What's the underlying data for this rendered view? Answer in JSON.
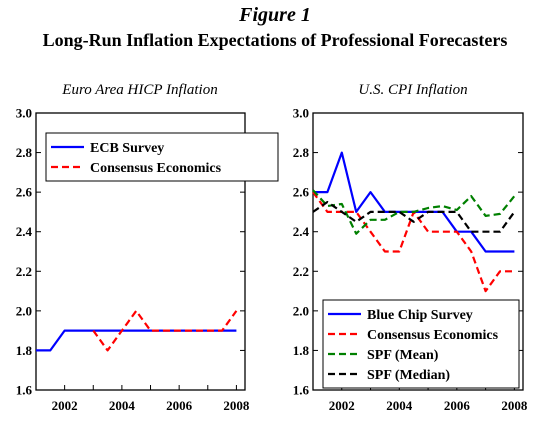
{
  "figure": {
    "number": "Figure 1",
    "title": "Long-Run Inflation Expectations of Professional Forecasters"
  },
  "chart_data": [
    {
      "type": "line",
      "title": "Euro Area HICP Inflation",
      "xlim": [
        2001,
        2008.3
      ],
      "ylim": [
        1.6,
        3.0
      ],
      "xticks": [
        2002,
        2004,
        2006,
        2008
      ],
      "yticks": [
        "1.6",
        "1.8",
        "2.0",
        "2.2",
        "2.4",
        "2.6",
        "2.8",
        "3.0"
      ],
      "legend_position": "top-left",
      "series": [
        {
          "name": "ECB Survey",
          "color": "#0000ff",
          "dash": "solid",
          "x": [
            2001.0,
            2001.5,
            2002.0,
            2003.0,
            2004.0,
            2005.0,
            2006.0,
            2007.0,
            2008.0
          ],
          "y": [
            1.8,
            1.8,
            1.9,
            1.9,
            1.9,
            1.9,
            1.9,
            1.9,
            1.9
          ]
        },
        {
          "name": "Consensus Economics",
          "color": "#ff0000",
          "dash": "dashed",
          "x": [
            2003.0,
            2003.5,
            2004.0,
            2004.5,
            2005.0,
            2005.5,
            2006.0,
            2006.5,
            2007.0,
            2007.5,
            2008.0
          ],
          "y": [
            1.9,
            1.8,
            1.9,
            2.0,
            1.9,
            1.9,
            1.9,
            1.9,
            1.9,
            1.9,
            2.0
          ]
        }
      ]
    },
    {
      "type": "line",
      "title": "U.S. CPI Inflation",
      "xlim": [
        2001,
        2008.3
      ],
      "ylim": [
        1.6,
        3.0
      ],
      "xticks": [
        2002,
        2004,
        2006,
        2008
      ],
      "yticks": [
        "1.6",
        "1.8",
        "2.0",
        "2.2",
        "2.4",
        "2.6",
        "2.8",
        "3.0"
      ],
      "legend_position": "bottom-left",
      "series": [
        {
          "name": "Blue Chip Survey",
          "color": "#0000ff",
          "dash": "solid",
          "x": [
            2001.0,
            2001.5,
            2002.0,
            2002.5,
            2003.0,
            2003.5,
            2004.0,
            2004.5,
            2005.0,
            2005.5,
            2006.0,
            2006.5,
            2007.0,
            2007.5,
            2008.0
          ],
          "y": [
            2.6,
            2.6,
            2.8,
            2.5,
            2.6,
            2.5,
            2.5,
            2.5,
            2.5,
            2.5,
            2.4,
            2.4,
            2.3,
            2.3,
            2.3
          ]
        },
        {
          "name": "Consensus Economics",
          "color": "#ff0000",
          "dash": "dashed",
          "x": [
            2001.0,
            2001.5,
            2002.0,
            2002.5,
            2003.0,
            2003.5,
            2004.0,
            2004.5,
            2005.0,
            2005.5,
            2006.0,
            2006.5,
            2007.0,
            2007.5,
            2008.0
          ],
          "y": [
            2.6,
            2.5,
            2.5,
            2.5,
            2.4,
            2.3,
            2.3,
            2.5,
            2.4,
            2.4,
            2.4,
            2.3,
            2.1,
            2.2,
            2.2
          ]
        },
        {
          "name": "SPF (Mean)",
          "color": "#008000",
          "dash": "dashed",
          "x": [
            2001.0,
            2001.5,
            2002.0,
            2002.5,
            2003.0,
            2003.5,
            2004.0,
            2004.5,
            2005.0,
            2005.5,
            2006.0,
            2006.5,
            2007.0,
            2007.5,
            2008.0
          ],
          "y": [
            2.61,
            2.53,
            2.54,
            2.39,
            2.46,
            2.46,
            2.5,
            2.5,
            2.52,
            2.53,
            2.51,
            2.58,
            2.48,
            2.49,
            2.58
          ]
        },
        {
          "name": "SPF (Median)",
          "color": "#000000",
          "dash": "dashed",
          "x": [
            2001.0,
            2001.5,
            2002.0,
            2002.5,
            2003.0,
            2003.5,
            2004.0,
            2004.5,
            2005.0,
            2005.5,
            2006.0,
            2006.5,
            2007.0,
            2007.5,
            2008.0
          ],
          "y": [
            2.5,
            2.55,
            2.5,
            2.45,
            2.5,
            2.5,
            2.5,
            2.45,
            2.5,
            2.5,
            2.5,
            2.4,
            2.4,
            2.4,
            2.5
          ]
        }
      ]
    }
  ]
}
